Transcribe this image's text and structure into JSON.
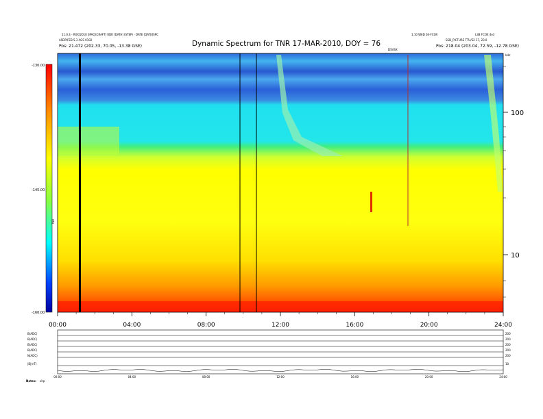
{
  "header": {
    "title": "Dynamic Spectrum for TNR 17-MAR-2010, DOY = 76",
    "left_line1": "11.0.3 - RXX[2010 SPACECRAFT] RDR [DATA] (STEP) - DATE [DATE]SPC",
    "left_line2": "ASDP/FEB 5.3 AGS 0102",
    "left_line3": "Pos:   21.472 (202.33, 70.05, -13.38 GSE)",
    "right_line1": "1.10 WED 04-FCOX",
    "right_line2": "L3B FCOX 4e3",
    "right_line3": "SSD_PICTURE  TTU/S2 17, 23.0",
    "right_line4": "Pos:   218.04 (203.04, 72.59, -12.78 GSE)",
    "mid_right_tag": "DSVSX",
    "khz_label": "kHz"
  },
  "colorbar": {
    "label": "TNR",
    "ticks": [
      "-130.00",
      "-145.00",
      "-160.00"
    ],
    "colors": [
      "#ff0000",
      "#ff8800",
      "#ffff00",
      "#00ffff",
      "#0000cc"
    ]
  },
  "chart_data": {
    "type": "heatmap",
    "title": "Dynamic Spectrum for TNR 17-MAR-2010, DOY = 76",
    "x_tick_labels": [
      "00:00",
      "04:00",
      "08:00",
      "12:00",
      "16:00",
      "20:00",
      "24:00"
    ],
    "x_range_hours": [
      0,
      24
    ],
    "y_scale": "log",
    "y_tick_labels": [
      "100",
      "10"
    ],
    "y_label_right": "kHz",
    "color_scale": {
      "label": "TNR",
      "min": -160.0,
      "max": -130.0,
      "ticks": [
        -130.0,
        -145.0,
        -160.0
      ]
    },
    "frequency_bands": [
      {
        "band": "low",
        "color": "#ff2200"
      },
      {
        "band": "low-mid",
        "color": "#ffee00"
      },
      {
        "band": "mid",
        "color": "#22e6ea"
      },
      {
        "band": "high",
        "color": "#2a6ad8"
      }
    ],
    "data_gap_lines_hours": [
      1.2,
      9.8,
      10.7
    ],
    "burst_feature_hours": [
      11.7,
      14.5
    ],
    "spike_hours": [
      17.0,
      18.9
    ]
  },
  "lower_panels": {
    "labels": [
      "B(ADC)",
      "B(ADC)",
      "B(ADC)",
      "B(ADC)",
      "N(ADC)",
      "|B|(nT)"
    ],
    "right_ticks": [
      "200",
      "200",
      "200",
      "200",
      "200",
      "10"
    ],
    "x_tick_labels": [
      "00:00",
      "04:00",
      "08:00",
      "12:00",
      "16:00",
      "20:00",
      "24:00"
    ],
    "footer_left": "Notes:",
    "footer_code": "xhp"
  }
}
